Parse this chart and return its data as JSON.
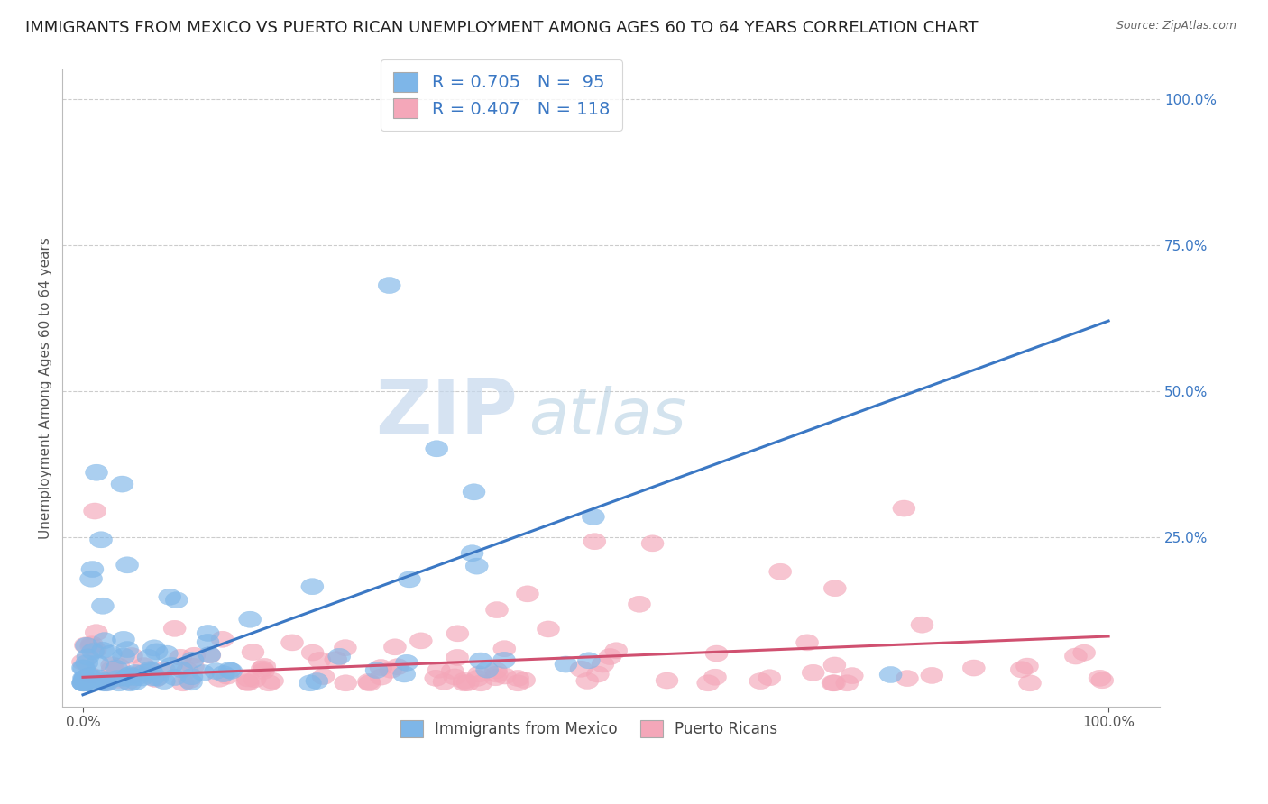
{
  "title": "IMMIGRANTS FROM MEXICO VS PUERTO RICAN UNEMPLOYMENT AMONG AGES 60 TO 64 YEARS CORRELATION CHART",
  "source": "Source: ZipAtlas.com",
  "ylabel": "Unemployment Among Ages 60 to 64 years",
  "xlim": [
    -0.02,
    1.05
  ],
  "ylim": [
    -0.04,
    1.05
  ],
  "y_ticks_right": [
    0.0,
    0.25,
    0.5,
    0.75,
    1.0
  ],
  "y_tick_labels_right": [
    "",
    "25.0%",
    "50.0%",
    "75.0%",
    "100.0%"
  ],
  "blue_color": "#7eb6e8",
  "blue_line_color": "#3b78c4",
  "pink_color": "#f4a7b9",
  "pink_line_color": "#d05070",
  "legend_blue_label": "R = 0.705   N =  95",
  "legend_pink_label": "R = 0.407   N = 118",
  "watermark_zip": "ZIP",
  "watermark_atlas": "atlas",
  "bottom_legend_blue": "Immigrants from Mexico",
  "bottom_legend_pink": "Puerto Ricans",
  "R_blue": 0.705,
  "N_blue": 95,
  "R_pink": 0.407,
  "N_pink": 118,
  "title_fontsize": 13,
  "axis_label_fontsize": 11,
  "tick_fontsize": 11,
  "blue_line_x0": 0.0,
  "blue_line_y0": -0.02,
  "blue_line_x1": 1.0,
  "blue_line_y1": 0.62,
  "pink_line_x0": 0.0,
  "pink_line_y0": 0.01,
  "pink_line_x1": 1.0,
  "pink_line_y1": 0.08
}
